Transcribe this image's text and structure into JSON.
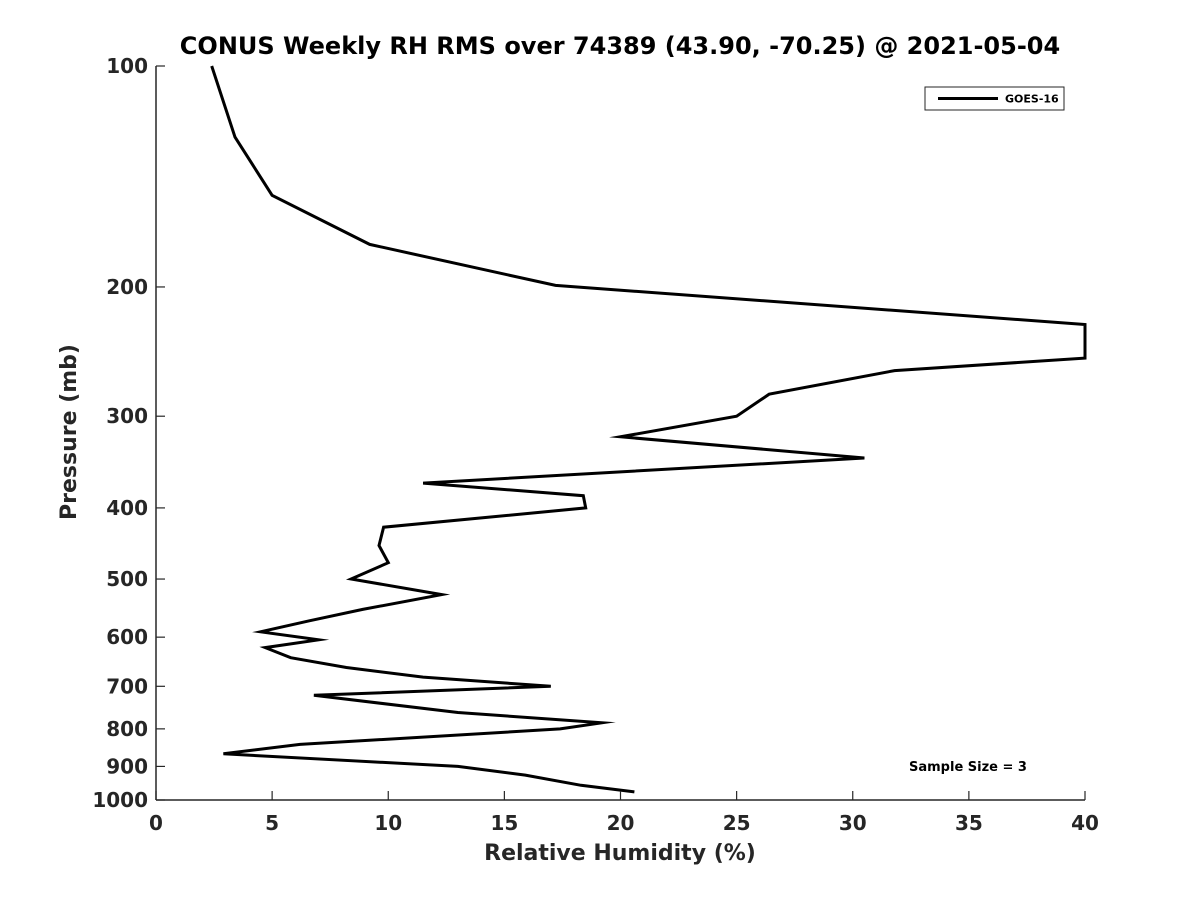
{
  "chart_data": {
    "type": "line",
    "title": "CONUS Weekly RH RMS over 74389 (43.90, -70.25) @ 2021-05-04",
    "xlabel": "Relative Humidity (%)",
    "ylabel": "Pressure (mb)",
    "xlim": [
      0,
      40
    ],
    "ylim": [
      100,
      1000
    ],
    "yscale": "log",
    "yaxis_inverted": true,
    "xticks": [
      0,
      5,
      10,
      15,
      20,
      25,
      30,
      35,
      40
    ],
    "yticks": [
      100,
      200,
      300,
      400,
      500,
      600,
      700,
      800,
      900,
      1000
    ],
    "grid": false,
    "legend_position": "top-right",
    "annotation": "Sample Size = 3",
    "series": [
      {
        "name": "GOES-16",
        "color": "#000000",
        "points": [
          [
            2.4,
            100
          ],
          [
            3.4,
            125
          ],
          [
            5.0,
            150
          ],
          [
            9.2,
            175
          ],
          [
            17.2,
            199
          ],
          [
            40.0,
            225
          ],
          [
            40.0,
            250
          ],
          [
            31.8,
            260
          ],
          [
            26.4,
            280
          ],
          [
            25.0,
            300
          ],
          [
            20.0,
            320
          ],
          [
            30.5,
            342
          ],
          [
            11.5,
            370
          ],
          [
            18.4,
            385
          ],
          [
            18.5,
            400
          ],
          [
            9.8,
            425
          ],
          [
            9.6,
            450
          ],
          [
            10.0,
            475
          ],
          [
            8.4,
            500
          ],
          [
            12.3,
            525
          ],
          [
            8.9,
            550
          ],
          [
            6.6,
            570
          ],
          [
            4.5,
            590
          ],
          [
            7.0,
            605
          ],
          [
            4.7,
            620
          ],
          [
            5.8,
            640
          ],
          [
            8.2,
            660
          ],
          [
            11.5,
            680
          ],
          [
            17.0,
            700
          ],
          [
            6.8,
            720
          ],
          [
            13.0,
            760
          ],
          [
            19.2,
            785
          ],
          [
            17.4,
            800
          ],
          [
            6.2,
            840
          ],
          [
            2.9,
            865
          ],
          [
            13.0,
            900
          ],
          [
            15.9,
            925
          ],
          [
            18.3,
            955
          ],
          [
            20.6,
            975
          ]
        ]
      }
    ]
  }
}
